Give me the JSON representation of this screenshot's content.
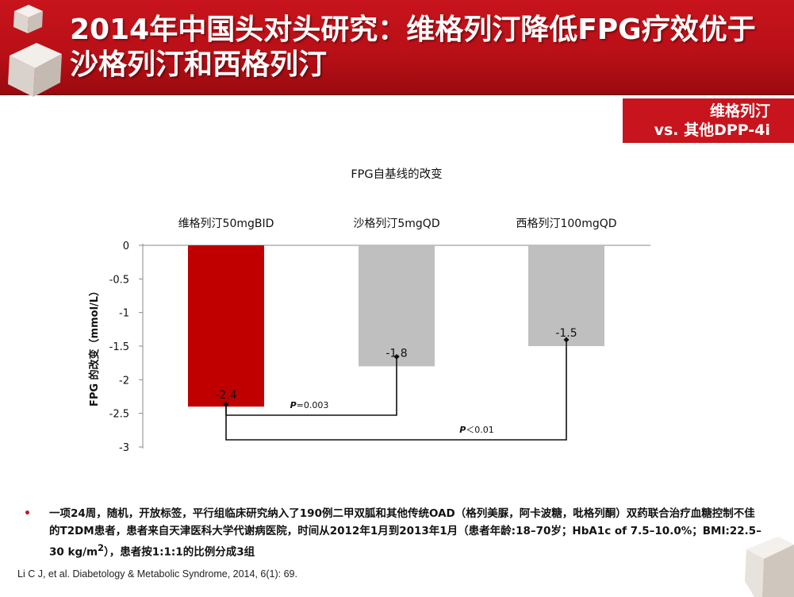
{
  "header": {
    "title": "2014年中国头对头研究：维格列汀降低FPG疗效优于沙格列汀和西格列汀"
  },
  "tag": {
    "line1": "维格列汀",
    "line2": "vs. 其他DPP-4i"
  },
  "chart_data": {
    "type": "bar",
    "title": "FPG自基线的改变",
    "ylabel": "FPG 的改变（mmol/L）",
    "ylim": [
      -3,
      0
    ],
    "yticks": [
      0,
      -0.5,
      -1,
      -1.5,
      -2,
      -2.5,
      -3
    ],
    "categories": [
      "维格列汀50mgBID",
      "沙格列汀5mgQD",
      "西格列汀100mgQD"
    ],
    "values": [
      -2.4,
      -1.8,
      -1.5
    ],
    "value_labels": [
      "-2.4",
      "-1.8",
      "-1.5"
    ],
    "colors": [
      "#c00000",
      "#bfbfbf",
      "#bfbfbf"
    ],
    "comparisons": [
      {
        "from": 0,
        "to": 1,
        "label_italic": "P",
        "label_rest": "=0.003"
      },
      {
        "from": 0,
        "to": 2,
        "label_italic": "P",
        "label_rest": "＜0.01"
      }
    ]
  },
  "footnote": {
    "bullet": "•",
    "text_part1": "一项24周，随机，开放标签，平行组临床研究纳入了190例二甲双胍和其他传统OAD（格列美脲，阿卡波糖，吡格列酮）双药联合治疗血糖控制不佳的T2DM患者，患者来自天津医科大学代谢病医院，时间从2012年1月到2013年1月（患者年龄:18–70岁；HbA1c of 7.5–10.0%；BMI:22.5–30 kg/m",
    "sup": "2",
    "text_part2": "），患者按1:1:1的比例分成3组"
  },
  "reference": "Li C J, et al. Diabetology & Metabolic Syndrome, 2014, 6(1): 69."
}
